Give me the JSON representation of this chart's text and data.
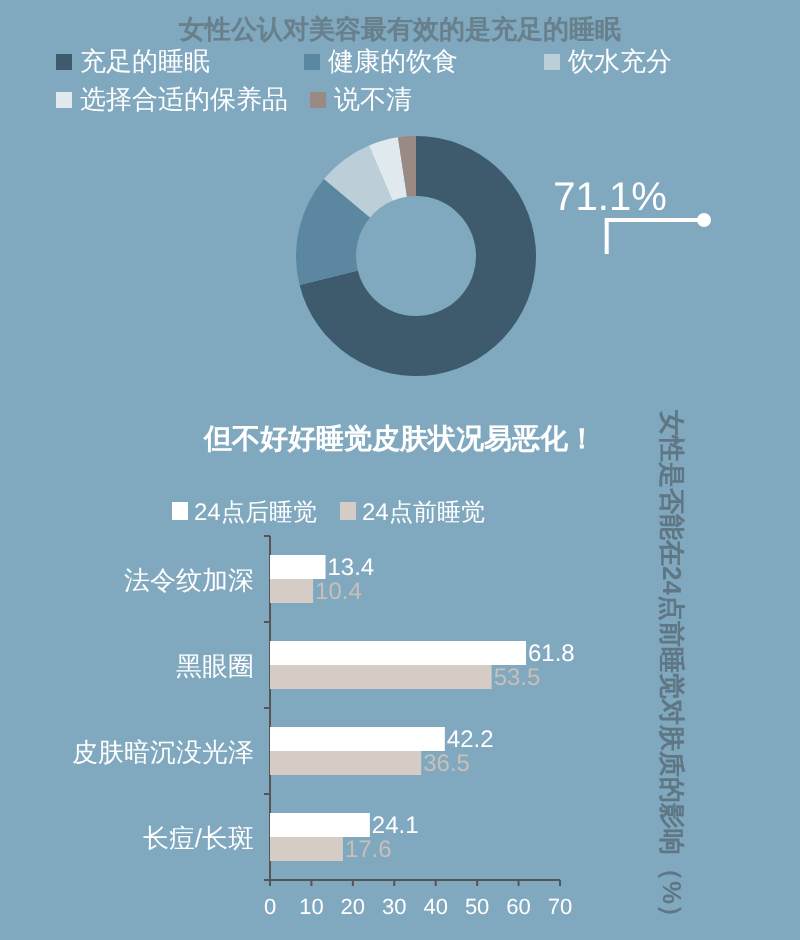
{
  "chart_data": [
    {
      "type": "donut",
      "title": "女性公认对美容最有效的是充足的睡眠",
      "categories": [
        "充足的睡眠",
        "健康的饮食",
        "饮水充分",
        "选择合适的保养品",
        "说不清"
      ],
      "values": [
        71.1,
        15.0,
        7.5,
        4.0,
        2.4
      ],
      "colors": [
        "#3d5b6d",
        "#5b87a0",
        "#bccfd9",
        "#dfe9ee",
        "#9b8a84"
      ],
      "value_labels": [
        "71.1%",
        null,
        null,
        null,
        null
      ],
      "legend": "top"
    },
    {
      "type": "bar",
      "orientation": "horizontal",
      "title": "但不好好睡觉皮肤状况易恶化！",
      "categories": [
        "法令纹加深",
        "黑眼圈",
        "皮肤暗沉没光泽",
        "长痘/长斑"
      ],
      "series": [
        {
          "name": "24点后睡觉",
          "color": "#ffffff",
          "values": [
            13.4,
            61.8,
            42.2,
            24.1
          ]
        },
        {
          "name": "24点前睡觉",
          "color": "#d5ccc6",
          "values": [
            10.4,
            53.5,
            36.5,
            17.6
          ]
        }
      ],
      "xlim": [
        0,
        70
      ],
      "xticks": [
        0,
        10,
        20,
        30,
        40,
        50,
        60,
        70
      ],
      "data_labels": true,
      "legend": "top left",
      "annotations": [
        "女性是否能在24点前睡觉对肤质的影响（%）"
      ]
    }
  ]
}
